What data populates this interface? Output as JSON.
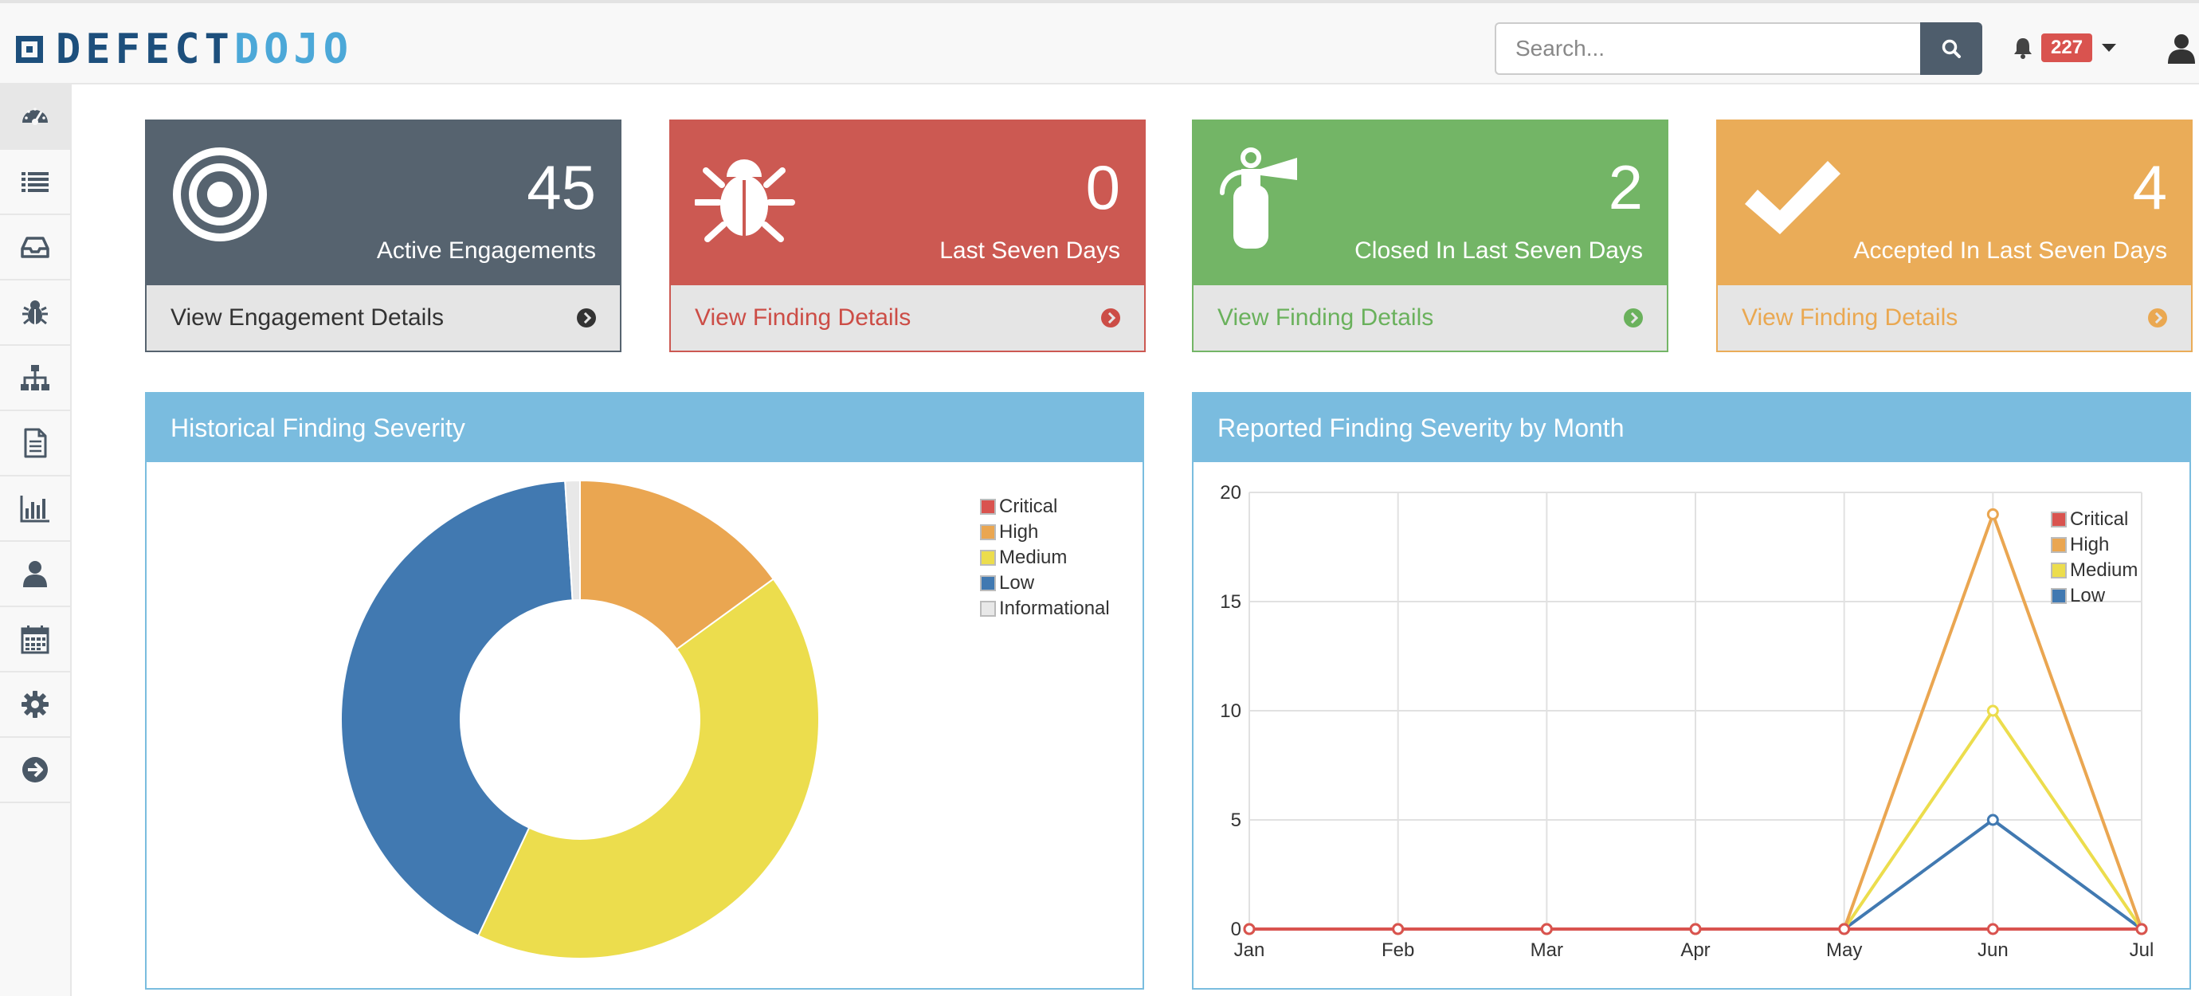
{
  "app": {
    "logo_text_1": "DEFECT",
    "logo_text_2": "DOJO"
  },
  "search": {
    "placeholder": "Search...",
    "value": ""
  },
  "notifications": {
    "count": "227"
  },
  "sidebar": {
    "items": [
      {
        "icon": "dashboard-icon",
        "active": true
      },
      {
        "icon": "list-icon"
      },
      {
        "icon": "inbox-icon"
      },
      {
        "icon": "bug-icon"
      },
      {
        "icon": "sitemap-icon"
      },
      {
        "icon": "file-icon"
      },
      {
        "icon": "bar-chart-icon"
      },
      {
        "icon": "user-icon"
      },
      {
        "icon": "calendar-icon"
      },
      {
        "icon": "gear-icon"
      },
      {
        "icon": "arrow-circle-right-icon"
      }
    ]
  },
  "stats": [
    {
      "value": "45",
      "label": "Active Engagements",
      "link": "View Engagement Details",
      "icon": "target-icon",
      "color": "#56636f",
      "text_color": "#333333"
    },
    {
      "value": "0",
      "label": "Last Seven Days",
      "link": "View Finding Details",
      "icon": "bug-icon",
      "color": "#cc5952",
      "text_color": "#cc4d46"
    },
    {
      "value": "2",
      "label": "Closed In Last Seven Days",
      "link": "View Finding Details",
      "icon": "fire-extinguisher-icon",
      "color": "#73b566",
      "text_color": "#6ab15c"
    },
    {
      "value": "4",
      "label": "Accepted In Last Seven Days",
      "link": "View Finding Details",
      "icon": "check-icon",
      "color": "#eaac58",
      "text_color": "#eaa851"
    }
  ],
  "colors": {
    "critical": "#d9534f",
    "high": "#eaa651",
    "medium": "#ecdd4d",
    "low": "#4179b1",
    "informational": "#e8e8e8",
    "panel_header": "#7abcdf"
  },
  "donut_panel": {
    "title": "Historical Finding Severity"
  },
  "line_panel": {
    "title": "Reported Finding Severity by Month"
  },
  "chart_data": [
    {
      "type": "pie",
      "title": "Historical Finding Severity",
      "donut": true,
      "categories": [
        "Critical",
        "High",
        "Medium",
        "Low",
        "Informational"
      ],
      "values": [
        0,
        15,
        42,
        42,
        1
      ],
      "legend_position": "top-right"
    },
    {
      "type": "line",
      "title": "Reported Finding Severity by Month",
      "x": [
        "Jan",
        "Feb",
        "Mar",
        "Apr",
        "May",
        "Jun",
        "Jul"
      ],
      "ylim": [
        0,
        20
      ],
      "yticks": [
        0,
        5,
        10,
        15,
        20
      ],
      "grid": true,
      "legend_position": "top-right",
      "series": [
        {
          "name": "Critical",
          "values": [
            0,
            0,
            0,
            0,
            0,
            0,
            0
          ]
        },
        {
          "name": "High",
          "values": [
            0,
            0,
            0,
            0,
            0,
            19,
            0
          ]
        },
        {
          "name": "Medium",
          "values": [
            0,
            0,
            0,
            0,
            0,
            10,
            0
          ]
        },
        {
          "name": "Low",
          "values": [
            0,
            0,
            0,
            0,
            0,
            5,
            0
          ]
        }
      ]
    }
  ]
}
